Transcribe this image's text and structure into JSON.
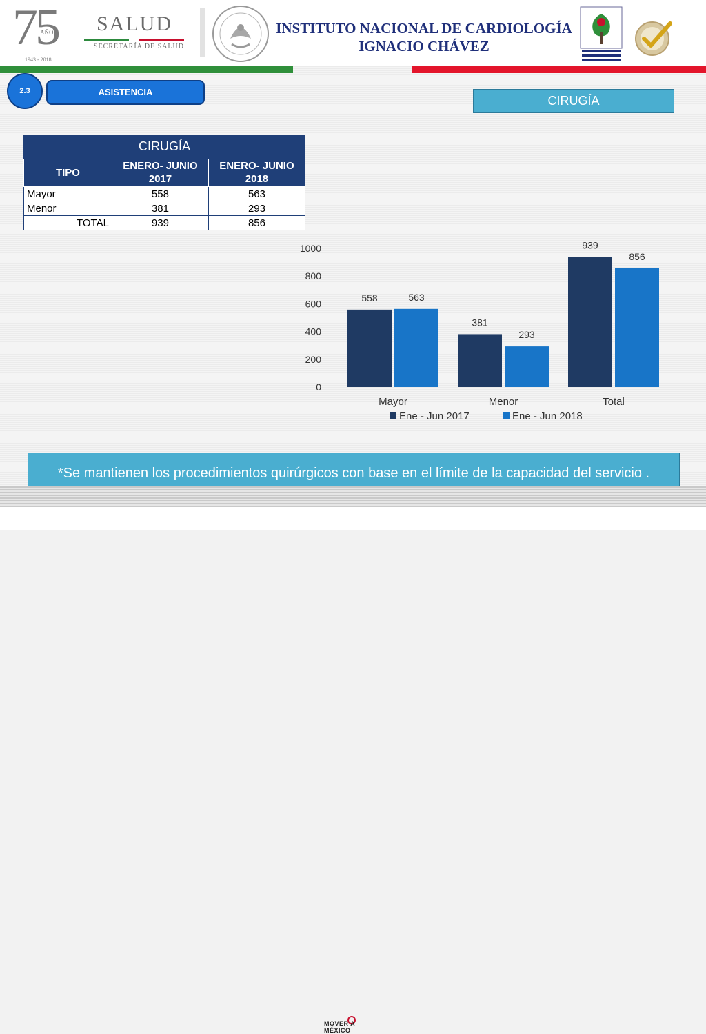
{
  "header": {
    "anniversary_number": "75",
    "anniversary_word": "AÑOS",
    "anniversary_years": "1943 - 2018",
    "salud_title": "SALUD",
    "salud_subtitle": "SECRETARÍA DE SALUD",
    "institute_line1": "INSTITUTO NACIONAL DE CARDIOLOGÍA",
    "institute_line2": "IGNACIO CHÁVEZ"
  },
  "section": {
    "number": "2.3",
    "name": "ASISTENCIA",
    "topic": "CIRUGÍA"
  },
  "table": {
    "title": "CIRUGÍA",
    "headers": [
      "TIPO",
      "ENERO- JUNIO 2017",
      "ENERO- JUNIO 2018"
    ],
    "rows": [
      [
        "Mayor",
        "558",
        "563"
      ],
      [
        "Menor",
        "381",
        "293"
      ],
      [
        "TOTAL",
        "939",
        "856"
      ]
    ]
  },
  "chart_data": {
    "type": "bar",
    "categories": [
      "Mayor",
      "Menor",
      "Total"
    ],
    "series": [
      {
        "name": "Ene - Jun 2017",
        "values": [
          558,
          381,
          939
        ],
        "color": "#1f3a63"
      },
      {
        "name": "Ene - Jun 2018",
        "values": [
          563,
          293,
          856
        ],
        "color": "#1875c8"
      }
    ],
    "ylim": [
      0,
      1000
    ],
    "yticks": [
      0,
      200,
      400,
      600,
      800,
      1000
    ],
    "grid": false,
    "legend": "bottom",
    "title": "",
    "xlabel": "",
    "ylabel": ""
  },
  "note": "*Se mantienen los procedimientos quirúrgicos con base en el límite de la capacidad del servicio .",
  "footer": {
    "brand": "MOVER A MÉXICO"
  },
  "colors": {
    "navy": "#1f3f78",
    "accent_blue": "#1a73d9",
    "light_blue": "#4aaed0",
    "green_bar": "#2f8f3a",
    "red_bar": "#e3152b",
    "title_blue": "#1f2f7a"
  }
}
